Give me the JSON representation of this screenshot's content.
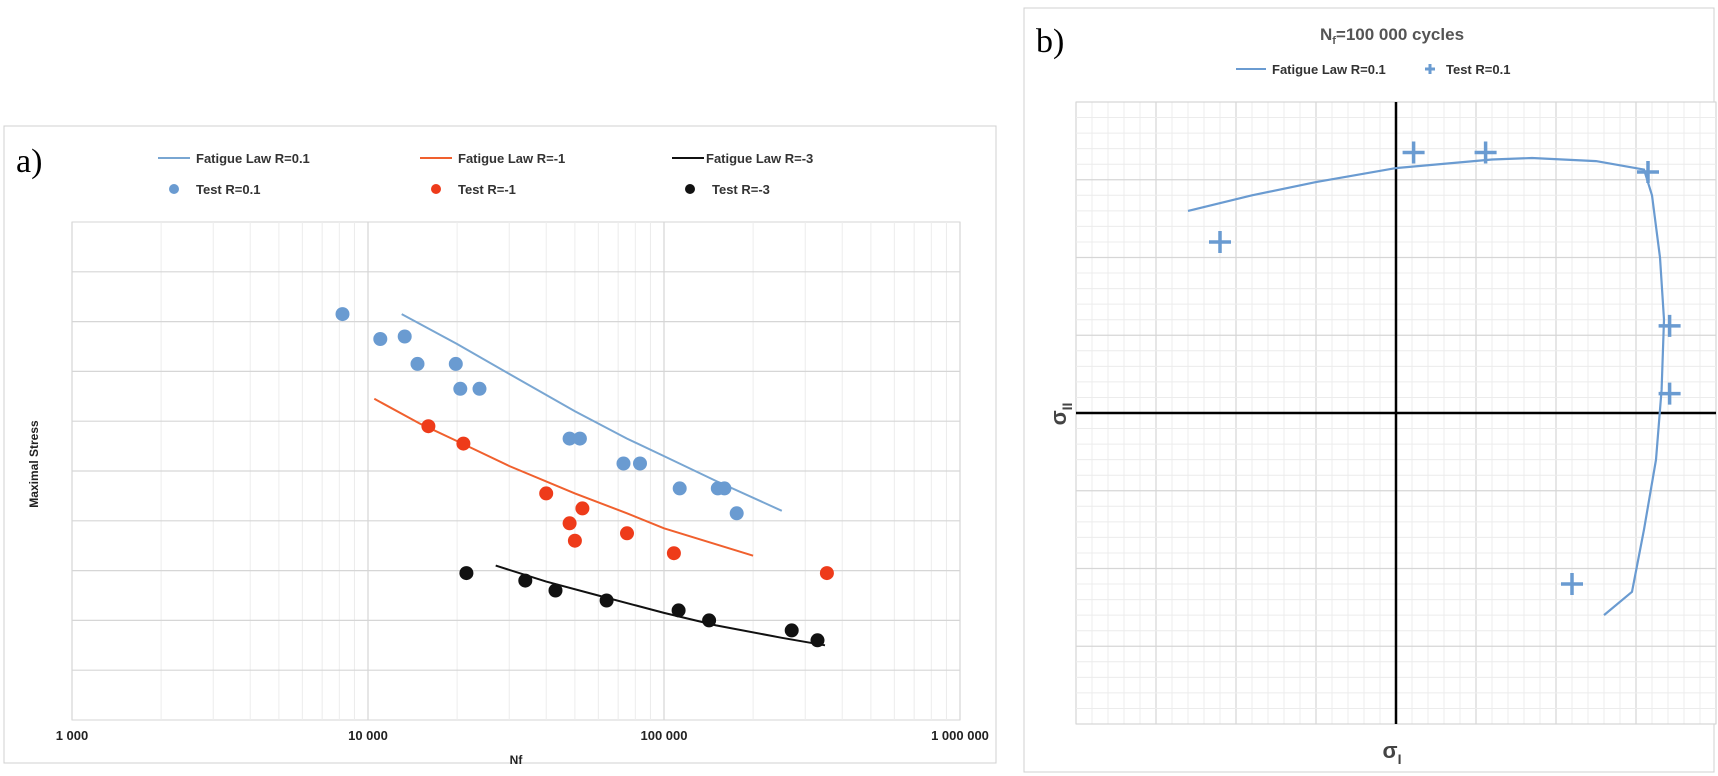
{
  "chart_data": [
    {
      "panel": "a)",
      "type": "scatter",
      "xlabel": "Nf",
      "ylabel": "Maximal Stress",
      "x_scale": "log",
      "xlim": [
        1000,
        1000000
      ],
      "ylim": [
        0,
        10
      ],
      "x_ticks": [
        1000,
        10000,
        100000,
        1000000
      ],
      "x_tick_labels": [
        "1 000",
        "10 000",
        "100 000",
        "1 000 000"
      ],
      "grid": true,
      "legend_position": "top",
      "series": [
        {
          "name": "Fatigue Law R=0.1",
          "kind": "line",
          "color": "#79a6d2",
          "x": [
            13000,
            20000,
            30000,
            50000,
            75000,
            100000,
            150000,
            250000
          ],
          "y": [
            8.15,
            7.55,
            6.95,
            6.2,
            5.65,
            5.3,
            4.8,
            4.2
          ]
        },
        {
          "name": "Fatigue Law R=-1",
          "kind": "line",
          "color": "#f0602e",
          "x": [
            10500,
            15000,
            20000,
            30000,
            50000,
            75000,
            100000,
            200000
          ],
          "y": [
            6.45,
            5.95,
            5.6,
            5.1,
            4.55,
            4.15,
            3.85,
            3.3
          ]
        },
        {
          "name": "Fatigue Law R=-3",
          "kind": "line",
          "color": "#111111",
          "x": [
            27000,
            40000,
            60000,
            100000,
            150000,
            250000,
            350000
          ],
          "y": [
            3.1,
            2.78,
            2.5,
            2.15,
            1.9,
            1.65,
            1.5
          ]
        },
        {
          "name": "Test R=0.1",
          "kind": "points",
          "color": "#6a9bd1",
          "x": [
            8200,
            11000,
            13300,
            14700,
            19800,
            20500,
            23800,
            48000,
            52000,
            73000,
            83000,
            113000,
            152000,
            160000,
            176000
          ],
          "y": [
            8.15,
            7.65,
            7.7,
            7.15,
            7.15,
            6.65,
            6.65,
            5.65,
            5.65,
            5.15,
            5.15,
            4.65,
            4.65,
            4.65,
            4.15
          ]
        },
        {
          "name": "Test R=-1",
          "kind": "points",
          "color": "#ee3b1a",
          "x": [
            16000,
            21000,
            40000,
            48000,
            50000,
            53000,
            75000,
            108000,
            355000
          ],
          "y": [
            5.9,
            5.55,
            4.55,
            3.95,
            3.6,
            4.25,
            3.75,
            3.35,
            2.95
          ]
        },
        {
          "name": "Test R=-3",
          "kind": "points",
          "color": "#111111",
          "x": [
            21500,
            34000,
            43000,
            64000,
            112000,
            142000,
            270000,
            330000
          ],
          "y": [
            2.95,
            2.8,
            2.6,
            2.4,
            2.2,
            2.0,
            1.8,
            1.6
          ]
        }
      ]
    },
    {
      "panel": "b)",
      "type": "scatter",
      "title_main": "N",
      "title_sub": "f",
      "title_rest": "=100 000 cycles",
      "xlabel_main": "σ",
      "xlabel_sub": "I",
      "ylabel_main": "σ",
      "ylabel_sub": "II",
      "xlim": [
        -4,
        4
      ],
      "ylim": [
        -4,
        4
      ],
      "grid": true,
      "legend_position": "top",
      "series": [
        {
          "name": "Fatigue Law R=0.1",
          "kind": "line",
          "color": "#6a9bd1",
          "x": [
            -2.6,
            -1.8,
            -1.0,
            0.0,
            1.2,
            1.7,
            2.5,
            3.1,
            3.2,
            3.3,
            3.35,
            3.32,
            3.25,
            3.1,
            2.95,
            2.6
          ],
          "y": [
            2.6,
            2.8,
            2.97,
            3.15,
            3.26,
            3.28,
            3.24,
            3.13,
            2.8,
            2.0,
            1.2,
            0.3,
            -0.6,
            -1.5,
            -2.3,
            -2.6
          ]
        },
        {
          "name": "Test R=0.1",
          "kind": "points",
          "color": "#6a9bd1",
          "x": [
            -2.2,
            0.22,
            1.12,
            3.15,
            3.42,
            3.42,
            2.2
          ],
          "y": [
            2.2,
            3.35,
            3.35,
            3.1,
            1.12,
            0.25,
            -2.2
          ]
        }
      ]
    }
  ]
}
